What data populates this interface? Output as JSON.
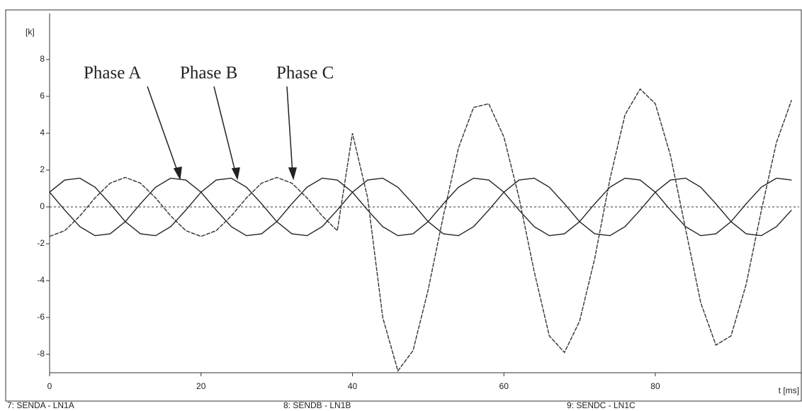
{
  "chart_data": {
    "type": "line",
    "y_label": "[k]",
    "x_label": "t [ms]",
    "annotations": [
      "Phase A",
      "Phase B",
      "Phase C"
    ],
    "x": [
      0,
      2,
      4,
      6,
      8,
      10,
      12,
      14,
      16,
      18,
      20,
      22,
      24,
      26,
      28,
      30,
      32,
      34,
      36,
      38,
      40,
      42,
      44,
      46,
      48,
      50,
      52,
      54,
      56,
      58,
      60,
      62,
      64,
      66,
      68,
      70,
      72,
      74,
      76,
      78,
      80,
      82,
      84,
      86,
      88,
      90,
      92,
      94,
      96,
      98
    ],
    "series": [
      {
        "name": "7: SENDA - LN1A",
        "color": "#222222",
        "values": [
          0.8,
          -0.17,
          -1.07,
          -1.56,
          -1.46,
          -0.8,
          0.17,
          1.07,
          1.56,
          1.46,
          0.8,
          -0.17,
          -1.07,
          -1.56,
          -1.46,
          -0.8,
          0.17,
          1.07,
          1.56,
          1.46,
          0.8,
          -0.17,
          -1.07,
          -1.56,
          -1.46,
          -0.8,
          0.17,
          1.07,
          1.56,
          1.46,
          0.8,
          -0.17,
          -1.07,
          -1.56,
          -1.46,
          -0.8,
          0.17,
          1.07,
          1.56,
          1.46,
          0.8,
          -0.17,
          -1.07,
          -1.56,
          -1.46,
          -0.8,
          0.17,
          1.07,
          1.56,
          1.46
        ]
      },
      {
        "name": "8: SENDB - LN1B",
        "color": "#222222",
        "values": [
          0.8,
          1.46,
          1.56,
          1.07,
          0.17,
          -0.8,
          -1.46,
          -1.56,
          -1.07,
          -0.17,
          0.8,
          1.46,
          1.56,
          1.07,
          0.17,
          -0.8,
          -1.46,
          -1.56,
          -1.07,
          -0.17,
          0.8,
          1.46,
          1.56,
          1.07,
          0.17,
          -0.8,
          -1.46,
          -1.56,
          -1.07,
          -0.17,
          0.8,
          1.46,
          1.56,
          1.07,
          0.17,
          -0.8,
          -1.46,
          -1.56,
          -1.07,
          -0.17,
          0.8,
          1.46,
          1.56,
          1.07,
          0.17,
          -0.8,
          -1.46,
          -1.56,
          -1.07,
          -0.17
        ]
      },
      {
        "name": "9: SENDC - LN1C",
        "color": "#333333",
        "values": [
          -1.6,
          -1.29,
          -0.49,
          0.49,
          1.29,
          1.6,
          1.29,
          0.49,
          -0.49,
          -1.29,
          -1.6,
          -1.29,
          -0.49,
          0.49,
          1.29,
          1.6,
          1.29,
          0.49,
          -0.49,
          -1.29,
          4.0,
          0.5,
          -6.0,
          -8.9,
          -7.8,
          -4.5,
          -0.5,
          3.2,
          5.4,
          5.6,
          3.8,
          0.5,
          -3.5,
          -7.0,
          -7.9,
          -6.2,
          -2.8,
          1.5,
          5.0,
          6.4,
          5.6,
          2.8,
          -1.2,
          -5.2,
          -7.5,
          -7.0,
          -4.2,
          -0.2,
          3.5,
          5.8
        ]
      }
    ],
    "xlim": [
      0,
      99
    ],
    "xticks": [
      0,
      20,
      40,
      60,
      80
    ],
    "ylim": [
      -9,
      10.5
    ],
    "yticks": [
      -8,
      -6,
      -4,
      -2,
      0,
      2,
      4,
      6,
      8
    ],
    "zero_line": true
  }
}
